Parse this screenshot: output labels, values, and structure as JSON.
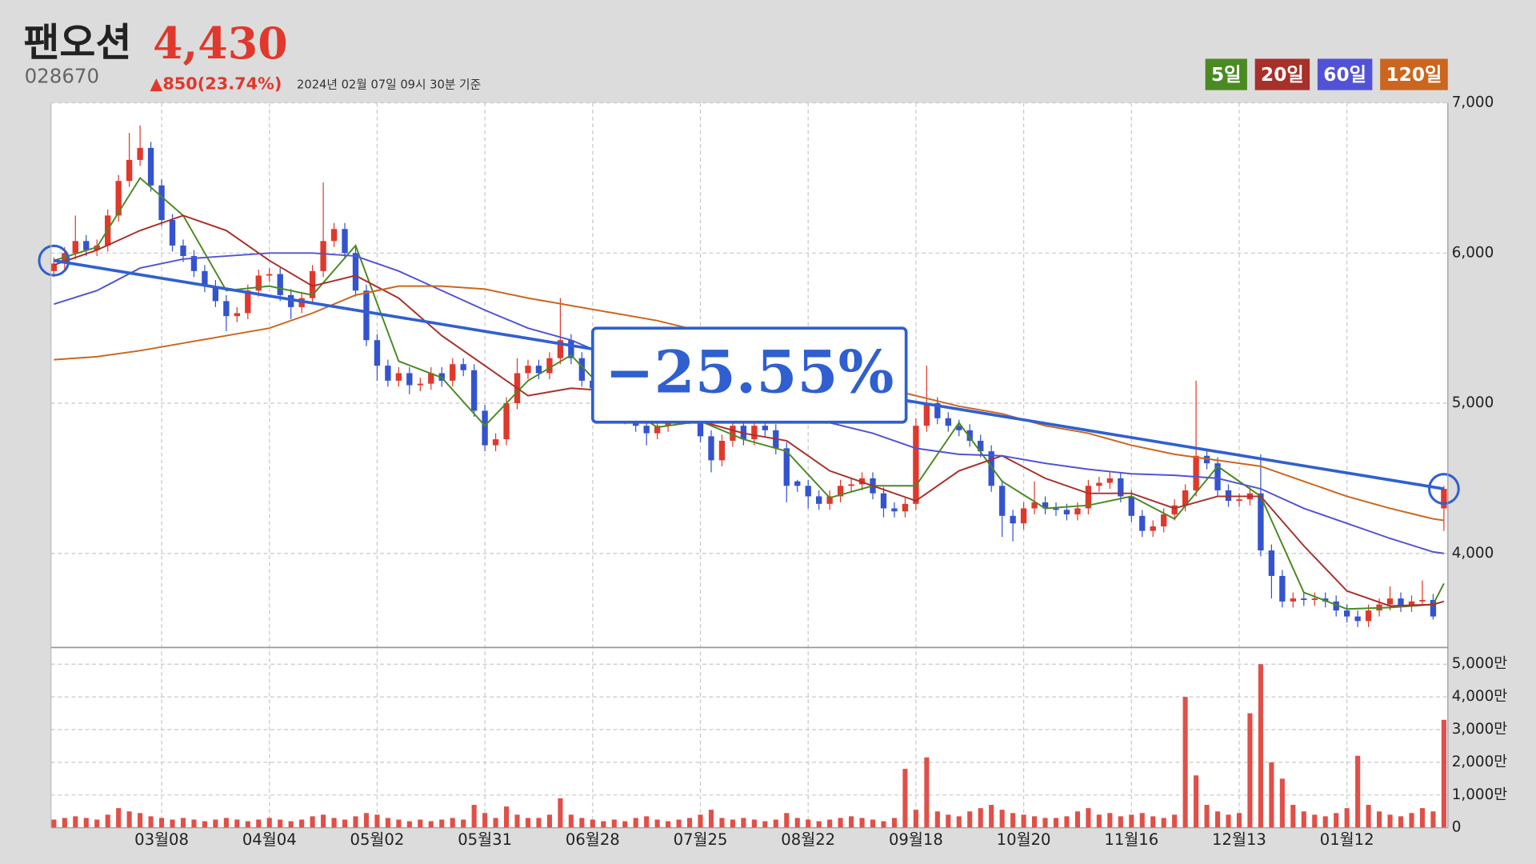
{
  "header": {
    "name": "팬오션",
    "price": "4,430",
    "code": "028670",
    "change": "▲850(23.74%)",
    "timestamp": "2024년 02월 07일 09시 30분 기준"
  },
  "chart_data": [
    {
      "type": "candlestick",
      "annotation": "−25.55%",
      "up_color": "#e0382c",
      "down_color": "#3453cf",
      "grid": true,
      "ylim": [
        3380,
        7000
      ],
      "yticks": [
        {
          "value": 4000,
          "label": "4,000"
        },
        {
          "value": 5000,
          "label": "5,000"
        },
        {
          "value": 6000,
          "label": "6,000"
        },
        {
          "value": 7000,
          "label": "7,000"
        }
      ],
      "categories": [
        null,
        null,
        null,
        null,
        null,
        null,
        null,
        null,
        null,
        null,
        "03월08",
        null,
        null,
        null,
        null,
        null,
        null,
        null,
        null,
        null,
        "04월04",
        null,
        null,
        null,
        null,
        null,
        null,
        null,
        null,
        null,
        "05월02",
        null,
        null,
        null,
        null,
        null,
        null,
        null,
        null,
        null,
        "05월31",
        null,
        null,
        null,
        null,
        null,
        null,
        null,
        null,
        null,
        "06월28",
        null,
        null,
        null,
        null,
        null,
        null,
        null,
        null,
        null,
        "07월25",
        null,
        null,
        null,
        null,
        null,
        null,
        null,
        null,
        null,
        "08월22",
        null,
        null,
        null,
        null,
        null,
        null,
        null,
        null,
        null,
        "09월18",
        null,
        null,
        null,
        null,
        null,
        null,
        null,
        null,
        null,
        "10월20",
        null,
        null,
        null,
        null,
        null,
        null,
        null,
        null,
        null,
        "11월16",
        null,
        null,
        null,
        null,
        null,
        null,
        null,
        null,
        null,
        "12월13",
        null,
        null,
        null,
        null,
        null,
        null,
        null,
        null,
        null,
        "01월12",
        null,
        null,
        null,
        null,
        null,
        null,
        null,
        null,
        null
      ],
      "open": [
        5880,
        5930,
        6000,
        6080,
        6020,
        6050,
        6250,
        6480,
        6620,
        6700,
        6450,
        6220,
        6050,
        5980,
        5880,
        5780,
        5680,
        5580,
        5600,
        5750,
        5850,
        5860,
        5720,
        5640,
        5700,
        5880,
        6080,
        6160,
        6000,
        5750,
        5420,
        5250,
        5150,
        5200,
        5120,
        5130,
        5200,
        5150,
        5260,
        5220,
        4950,
        4720,
        4760,
        5000,
        5200,
        5250,
        5200,
        5300,
        5420,
        5300,
        5150,
        5100,
        5000,
        4950,
        4900,
        4850,
        4800,
        4850,
        4900,
        4950,
        4900,
        4780,
        4620,
        4750,
        4850,
        4760,
        4850,
        4820,
        4700,
        4480,
        4450,
        4380,
        4330,
        4380,
        4450,
        4460,
        4500,
        4400,
        4300,
        4280,
        4330,
        4850,
        5000,
        4900,
        4850,
        4820,
        4750,
        4680,
        4450,
        4250,
        4200,
        4300,
        4340,
        4300,
        4290,
        4260,
        4300,
        4450,
        4470,
        4500,
        4380,
        4250,
        4150,
        4180,
        4260,
        4320,
        4420,
        4650,
        4600,
        4420,
        4350,
        4360,
        4400,
        4020,
        3850,
        3680,
        3700,
        3690,
        3700,
        3680,
        3620,
        3580,
        3550,
        3620,
        3660,
        3700,
        3650,
        3680,
        3690,
        4300
      ],
      "high": [
        5970,
        6040,
        6250,
        6120,
        6090,
        6290,
        6520,
        6800,
        6850,
        6740,
        6490,
        6260,
        6090,
        6020,
        5920,
        5820,
        5720,
        5640,
        5790,
        5890,
        5900,
        5900,
        5760,
        5740,
        5920,
        6470,
        6200,
        6200,
        6040,
        5790,
        5460,
        5290,
        5240,
        5240,
        5170,
        5240,
        5240,
        5300,
        5300,
        5260,
        4990,
        4800,
        5040,
        5300,
        5290,
        5290,
        5340,
        5700,
        5460,
        5340,
        5190,
        5140,
        5040,
        4990,
        4940,
        4890,
        4890,
        4940,
        4990,
        4990,
        4940,
        4820,
        4790,
        4890,
        4890,
        4890,
        4890,
        4860,
        4740,
        4490,
        4490,
        4420,
        4420,
        4490,
        4500,
        4540,
        4540,
        4440,
        4340,
        4370,
        4900,
        5250,
        5040,
        4940,
        4890,
        4860,
        4790,
        4720,
        4490,
        4290,
        4340,
        4480,
        4380,
        4340,
        4330,
        4340,
        4490,
        4510,
        4540,
        4540,
        4420,
        4290,
        4220,
        4300,
        4360,
        4460,
        5150,
        4690,
        4640,
        4460,
        4400,
        4440,
        4660,
        4060,
        3890,
        3740,
        3740,
        3740,
        3740,
        3720,
        3660,
        3620,
        3660,
        3700,
        3780,
        3740,
        3720,
        3820,
        3730,
        4450
      ],
      "low": [
        5840,
        5890,
        5960,
        5980,
        5980,
        6010,
        6210,
        6440,
        6580,
        6410,
        6180,
        6010,
        5940,
        5840,
        5740,
        5640,
        5480,
        5540,
        5560,
        5710,
        5810,
        5680,
        5560,
        5600,
        5660,
        5840,
        6040,
        5960,
        5710,
        5380,
        5150,
        5110,
        5110,
        5060,
        5080,
        5090,
        5110,
        5110,
        5180,
        4910,
        4680,
        4680,
        4720,
        4960,
        5160,
        5160,
        5160,
        5260,
        5260,
        5110,
        5060,
        4960,
        4910,
        4860,
        4810,
        4720,
        4760,
        4810,
        4860,
        4860,
        4740,
        4540,
        4580,
        4710,
        4720,
        4720,
        4780,
        4660,
        4340,
        4410,
        4300,
        4290,
        4290,
        4340,
        4410,
        4420,
        4360,
        4240,
        4240,
        4240,
        4290,
        4810,
        4860,
        4810,
        4780,
        4710,
        4640,
        4410,
        4110,
        4080,
        4160,
        4260,
        4260,
        4250,
        4220,
        4220,
        4260,
        4410,
        4430,
        4340,
        4210,
        4110,
        4110,
        4140,
        4220,
        4280,
        4380,
        4560,
        4380,
        4310,
        4310,
        4320,
        3980,
        3700,
        3640,
        3640,
        3650,
        3650,
        3640,
        3580,
        3540,
        3510,
        3510,
        3580,
        3620,
        3610,
        3610,
        3650,
        3560,
        4150
      ],
      "close": [
        5930,
        6000,
        6080,
        6020,
        6050,
        6250,
        6480,
        6620,
        6700,
        6450,
        6220,
        6050,
        5980,
        5880,
        5780,
        5680,
        5580,
        5600,
        5750,
        5850,
        5860,
        5720,
        5640,
        5700,
        5880,
        6080,
        6160,
        6000,
        5750,
        5420,
        5250,
        5150,
        5200,
        5120,
        5130,
        5200,
        5150,
        5260,
        5220,
        4950,
        4720,
        4760,
        5000,
        5200,
        5250,
        5200,
        5300,
        5420,
        5300,
        5150,
        5100,
        5000,
        4950,
        4900,
        4850,
        4800,
        4850,
        4900,
        4950,
        4900,
        4780,
        4620,
        4750,
        4850,
        4760,
        4850,
        4820,
        4700,
        4450,
        4450,
        4380,
        4330,
        4380,
        4450,
        4460,
        4500,
        4400,
        4300,
        4280,
        4330,
        4850,
        5000,
        4900,
        4850,
        4820,
        4750,
        4680,
        4450,
        4250,
        4200,
        4300,
        4340,
        4300,
        4290,
        4260,
        4300,
        4450,
        4470,
        4500,
        4380,
        4250,
        4150,
        4180,
        4260,
        4320,
        4420,
        4650,
        4600,
        4420,
        4350,
        4360,
        4400,
        4020,
        3850,
        3680,
        3700,
        3690,
        3700,
        3680,
        3620,
        3580,
        3550,
        3620,
        3660,
        3700,
        3650,
        3680,
        3690,
        3580,
        4430
      ],
      "series": [
        {
          "name": "5일",
          "color": "#4a8a22",
          "x": [
            0,
            4,
            8,
            12,
            16,
            20,
            24,
            28,
            32,
            36,
            40,
            44,
            48,
            52,
            56,
            60,
            64,
            68,
            72,
            76,
            80,
            84,
            88,
            92,
            96,
            100,
            104,
            108,
            112,
            116,
            120,
            124,
            128,
            129
          ],
          "values": [
            5950,
            6040,
            6500,
            6250,
            5750,
            5780,
            5720,
            6050,
            5280,
            5170,
            4850,
            5150,
            5320,
            5020,
            4840,
            4880,
            4760,
            4680,
            4370,
            4450,
            4450,
            4870,
            4480,
            4300,
            4320,
            4380,
            4230,
            4580,
            4380,
            3740,
            3630,
            3640,
            3660,
            3800
          ]
        },
        {
          "name": "20일",
          "color": "#a8302a",
          "x": [
            0,
            4,
            8,
            12,
            16,
            20,
            24,
            28,
            32,
            36,
            40,
            44,
            48,
            52,
            56,
            60,
            64,
            68,
            72,
            76,
            80,
            84,
            88,
            92,
            96,
            100,
            104,
            108,
            112,
            116,
            120,
            124,
            128,
            129
          ],
          "values": [
            5920,
            6020,
            6150,
            6250,
            6150,
            5950,
            5780,
            5850,
            5700,
            5450,
            5250,
            5050,
            5100,
            5080,
            5000,
            4880,
            4800,
            4750,
            4550,
            4450,
            4350,
            4550,
            4650,
            4500,
            4400,
            4400,
            4300,
            4380,
            4380,
            4050,
            3750,
            3650,
            3660,
            3680
          ]
        },
        {
          "name": "60일",
          "color": "#5252d8",
          "x": [
            0,
            4,
            8,
            12,
            16,
            20,
            24,
            28,
            32,
            36,
            40,
            44,
            48,
            52,
            56,
            60,
            64,
            68,
            72,
            76,
            80,
            84,
            88,
            92,
            96,
            100,
            104,
            108,
            112,
            116,
            120,
            124,
            128,
            129
          ],
          "values": [
            5660,
            5750,
            5900,
            5960,
            5980,
            6000,
            6000,
            5980,
            5880,
            5750,
            5620,
            5500,
            5420,
            5300,
            5200,
            5100,
            5020,
            4950,
            4870,
            4800,
            4700,
            4660,
            4650,
            4600,
            4560,
            4530,
            4520,
            4500,
            4430,
            4300,
            4200,
            4100,
            4010,
            4000
          ]
        },
        {
          "name": "120일",
          "color": "#cc661e",
          "x": [
            0,
            4,
            8,
            12,
            16,
            20,
            24,
            28,
            32,
            36,
            40,
            44,
            48,
            52,
            56,
            60,
            64,
            68,
            72,
            76,
            80,
            84,
            88,
            92,
            96,
            100,
            104,
            108,
            112,
            116,
            120,
            124,
            128,
            129
          ],
          "values": [
            5290,
            5310,
            5350,
            5400,
            5450,
            5500,
            5600,
            5720,
            5780,
            5780,
            5760,
            5700,
            5650,
            5600,
            5550,
            5480,
            5380,
            5300,
            5200,
            5120,
            5050,
            4980,
            4930,
            4850,
            4800,
            4720,
            4660,
            4620,
            4580,
            4480,
            4380,
            4300,
            4230,
            4220
          ]
        }
      ],
      "trendline": {
        "color": "#3060d0",
        "x": [
          0,
          129
        ],
        "values": [
          5950,
          4430
        ]
      }
    },
    {
      "type": "bar",
      "color": "#e05048",
      "grid": true,
      "ylim": [
        0,
        5480
      ],
      "yticks": [
        0,
        {
          "value": 1000,
          "label": "1,000만"
        },
        {
          "value": 2000,
          "label": "2,000만"
        },
        {
          "value": 3000,
          "label": "3,000만"
        },
        {
          "value": 4000,
          "label": "4,000만"
        },
        {
          "value": 5000,
          "label": "5,000만"
        }
      ],
      "values": [
        250,
        300,
        350,
        300,
        250,
        400,
        600,
        500,
        450,
        350,
        300,
        250,
        300,
        250,
        200,
        250,
        300,
        250,
        200,
        250,
        300,
        250,
        200,
        250,
        350,
        400,
        300,
        250,
        350,
        450,
        400,
        300,
        250,
        200,
        250,
        200,
        250,
        300,
        250,
        700,
        450,
        300,
        650,
        400,
        300,
        300,
        400,
        900,
        400,
        300,
        250,
        200,
        250,
        200,
        300,
        350,
        250,
        200,
        250,
        300,
        400,
        550,
        300,
        250,
        300,
        250,
        200,
        250,
        450,
        300,
        250,
        200,
        250,
        300,
        350,
        300,
        250,
        200,
        300,
        1800,
        550,
        2150,
        500,
        400,
        350,
        500,
        600,
        700,
        550,
        450,
        400,
        350,
        300,
        300,
        350,
        500,
        600,
        400,
        450,
        350,
        400,
        450,
        350,
        300,
        400,
        4000,
        1600,
        700,
        500,
        400,
        450,
        3500,
        5000,
        2000,
        1500,
        700,
        500,
        400,
        350,
        450,
        600,
        2200,
        700,
        500,
        400,
        350,
        450,
        600,
        500,
        3300
      ]
    }
  ]
}
